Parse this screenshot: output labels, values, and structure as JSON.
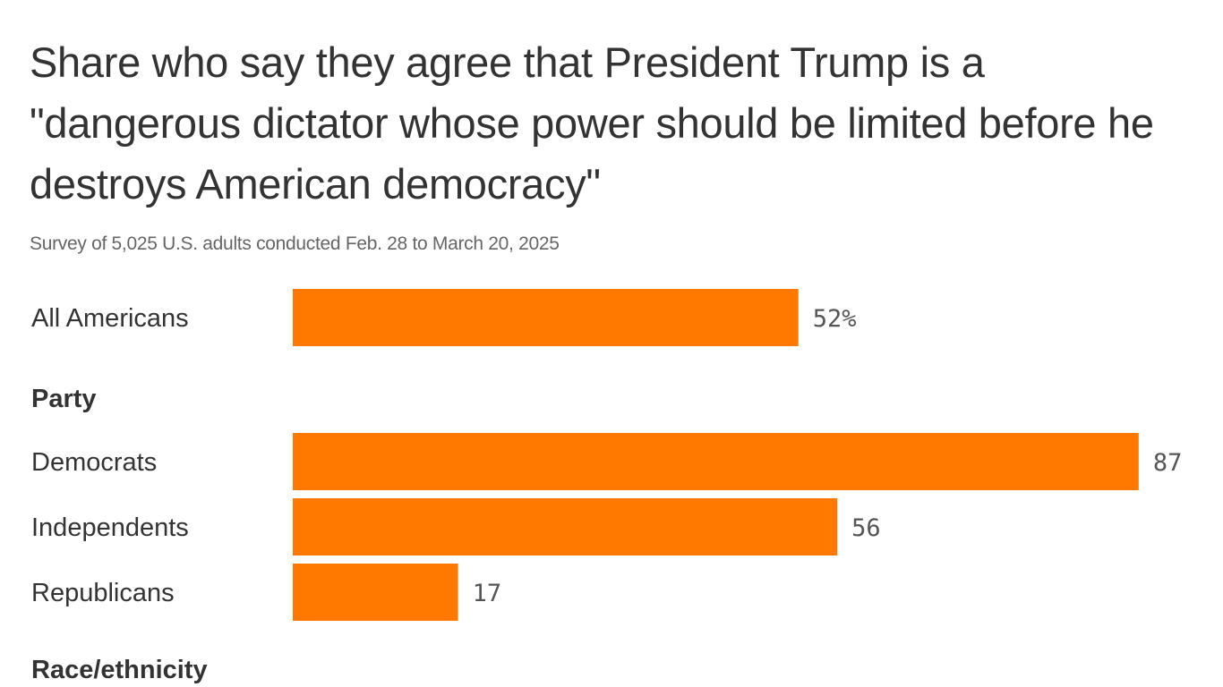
{
  "title": "Share who say they agree that President Trump is a \"dangerous dictator whose power should be limited before he destroys American democracy\"",
  "subtitle": "Survey of 5,025 U.S. adults conducted Feb. 28 to March 20, 2025",
  "colors": {
    "bar": "#ff7900",
    "text": "#333333",
    "value": "#555555"
  },
  "chart_data": {
    "type": "bar",
    "orientation": "horizontal",
    "title": "Share who say they agree that President Trump is a \"dangerous dictator whose power should be limited before he destroys American democracy\"",
    "subtitle": "Survey of 5,025 U.S. adults conducted Feb. 28 to March 20, 2025",
    "xlim": [
      0,
      100
    ],
    "unit": "%",
    "grid": false,
    "rows": [
      {
        "kind": "bar",
        "label": "All Americans",
        "value": 52,
        "display": "52%"
      },
      {
        "kind": "group",
        "label": "Party"
      },
      {
        "kind": "bar",
        "label": "Democrats",
        "value": 87,
        "display": "87"
      },
      {
        "kind": "bar",
        "label": "Independents",
        "value": 56,
        "display": "56"
      },
      {
        "kind": "bar",
        "label": "Republicans",
        "value": 17,
        "display": "17"
      },
      {
        "kind": "group",
        "label": "Race/ethnicity"
      }
    ]
  }
}
